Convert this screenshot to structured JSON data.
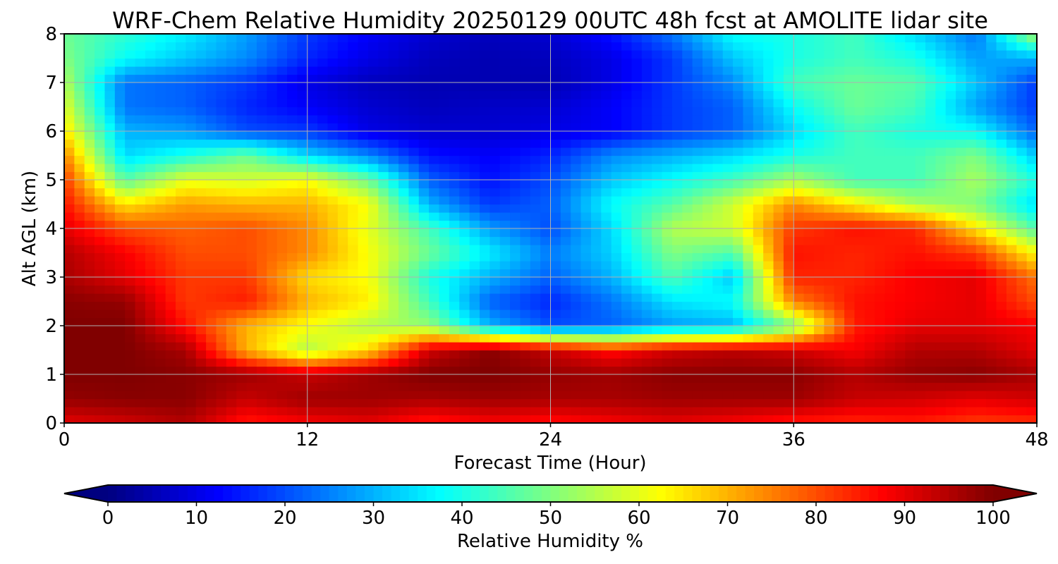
{
  "chart_data": {
    "type": "heatmap",
    "title": "WRF-Chem Relative Humidity 20250129 00UTC 48h fcst at AMOLITE lidar site",
    "xlabel": "Forecast Time (Hour)",
    "ylabel": "Alt AGL (km)",
    "xlim": [
      0,
      48
    ],
    "ylim": [
      0,
      8
    ],
    "xticks": [
      0,
      12,
      24,
      36,
      48
    ],
    "yticks": [
      0,
      1,
      2,
      3,
      4,
      5,
      6,
      7,
      8
    ],
    "grid": true,
    "colormap": "jet",
    "colorbar": {
      "label": "Relative Humidity %",
      "range": [
        0,
        100
      ],
      "ticks": [
        0,
        10,
        20,
        30,
        40,
        50,
        60,
        70,
        80,
        90,
        100
      ],
      "extend": "both",
      "orientation": "horizontal"
    },
    "x": [
      0,
      3,
      6,
      9,
      12,
      15,
      18,
      21,
      24,
      27,
      30,
      33,
      36,
      39,
      42,
      45,
      48
    ],
    "y": [
      0,
      0.5,
      1,
      1.5,
      2,
      2.5,
      3,
      3.5,
      4,
      4.5,
      5,
      5.5,
      6,
      6.5,
      7,
      7.5,
      8
    ],
    "z": [
      [
        90,
        92,
        95,
        85,
        88,
        90,
        85,
        88,
        86,
        88,
        90,
        88,
        85,
        84,
        85,
        82,
        83
      ],
      [
        98,
        99,
        99,
        93,
        97,
        97,
        96,
        97,
        96,
        96,
        97,
        97,
        97,
        93,
        92,
        90,
        92
      ],
      [
        100,
        100,
        99,
        97,
        93,
        97,
        100,
        100,
        98,
        97,
        99,
        99,
        99,
        95,
        98,
        99,
        96
      ],
      [
        100,
        100,
        96,
        70,
        55,
        66,
        92,
        99,
        93,
        86,
        92,
        94,
        92,
        88,
        95,
        95,
        90
      ],
      [
        100,
        100,
        86,
        70,
        62,
        55,
        52,
        30,
        20,
        22,
        28,
        30,
        50,
        85,
        90,
        90,
        88
      ],
      [
        99,
        98,
        82,
        85,
        70,
        64,
        44,
        22,
        16,
        24,
        35,
        38,
        75,
        86,
        88,
        90,
        80
      ],
      [
        96,
        90,
        82,
        82,
        66,
        62,
        40,
        30,
        22,
        30,
        45,
        32,
        84,
        84,
        88,
        90,
        76
      ],
      [
        95,
        88,
        80,
        80,
        74,
        62,
        48,
        36,
        25,
        33,
        50,
        45,
        86,
        84,
        86,
        82,
        62
      ],
      [
        90,
        80,
        78,
        80,
        74,
        60,
        44,
        28,
        20,
        34,
        55,
        58,
        82,
        86,
        84,
        65,
        45
      ],
      [
        86,
        65,
        72,
        70,
        70,
        62,
        30,
        18,
        22,
        38,
        46,
        58,
        74,
        64,
        54,
        50,
        34
      ],
      [
        82,
        46,
        60,
        58,
        62,
        48,
        22,
        14,
        20,
        32,
        38,
        44,
        54,
        44,
        44,
        54,
        40
      ],
      [
        75,
        34,
        40,
        48,
        34,
        26,
        14,
        12,
        16,
        26,
        30,
        34,
        40,
        44,
        44,
        50,
        32
      ],
      [
        65,
        30,
        28,
        20,
        18,
        10,
        8,
        8,
        10,
        12,
        18,
        22,
        34,
        44,
        40,
        38,
        22
      ],
      [
        60,
        24,
        22,
        16,
        12,
        8,
        6,
        7,
        8,
        12,
        18,
        22,
        38,
        48,
        44,
        28,
        18
      ],
      [
        55,
        24,
        22,
        18,
        10,
        6,
        5,
        5,
        5,
        10,
        18,
        26,
        44,
        48,
        46,
        32,
        18
      ],
      [
        50,
        38,
        32,
        26,
        16,
        10,
        6,
        5,
        6,
        10,
        18,
        32,
        40,
        44,
        40,
        28,
        30
      ],
      [
        48,
        42,
        36,
        28,
        18,
        12,
        8,
        6,
        8,
        14,
        24,
        38,
        40,
        44,
        34,
        24,
        55
      ]
    ]
  }
}
